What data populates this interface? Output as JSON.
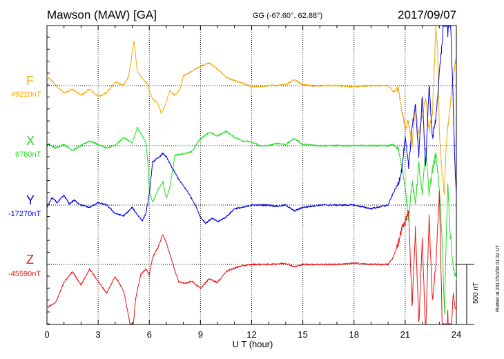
{
  "header": {
    "title": "Mawson (MAW)  [GA]",
    "coords": "GG (-67.60°,  62.88°)",
    "date": "2017/09/07"
  },
  "footer": {
    "plotted": "Plotted at 2017/10/08 01:32 UT",
    "scale_label": "500 nT"
  },
  "chart_data": {
    "type": "line",
    "title": "Mawson (MAW)  [GA]",
    "xlabel": "U T (hour)",
    "ylabel": "",
    "xlim": [
      0,
      24
    ],
    "x_ticks": [
      0,
      3,
      6,
      9,
      12,
      15,
      18,
      21,
      24
    ],
    "x_tick_labels": [
      "0",
      "3",
      "6",
      "9",
      "12",
      "15",
      "18",
      "21",
      "24"
    ],
    "scale_bar_nT": 500,
    "grid": true,
    "series": [
      {
        "name": "F",
        "baseline": "49220nT",
        "baseline_nT": 49220,
        "color": "#f5a800",
        "points": [
          [
            0,
            70
          ],
          [
            0.3,
            40
          ],
          [
            0.6,
            -10
          ],
          [
            1,
            -60
          ],
          [
            1.5,
            -30
          ],
          [
            2,
            -80
          ],
          [
            2.5,
            -30
          ],
          [
            3,
            -90
          ],
          [
            3.5,
            -60
          ],
          [
            4,
            30
          ],
          [
            4.5,
            0
          ],
          [
            4.8,
            80
          ],
          [
            5.1,
            370
          ],
          [
            5.3,
            120
          ],
          [
            5.6,
            60
          ],
          [
            5.9,
            10
          ],
          [
            6,
            -50
          ],
          [
            6.2,
            -110
          ],
          [
            6.5,
            -150
          ],
          [
            6.7,
            -230
          ],
          [
            6.9,
            -180
          ],
          [
            7.2,
            -40
          ],
          [
            7.5,
            -80
          ],
          [
            7.8,
            -30
          ],
          [
            8,
            80
          ],
          [
            8.5,
            120
          ],
          [
            9,
            160
          ],
          [
            9.5,
            190
          ],
          [
            10,
            140
          ],
          [
            10.5,
            70
          ],
          [
            11,
            40
          ],
          [
            11.5,
            20
          ],
          [
            12,
            -10
          ],
          [
            12.5,
            -10
          ],
          [
            13,
            0
          ],
          [
            13.5,
            0
          ],
          [
            14,
            10
          ],
          [
            14.5,
            50
          ],
          [
            15,
            10
          ],
          [
            15.5,
            0
          ],
          [
            16,
            0
          ],
          [
            17,
            0
          ],
          [
            18,
            -10
          ],
          [
            19,
            0
          ],
          [
            20,
            0
          ],
          [
            20.3,
            -50
          ],
          [
            20.6,
            -30
          ],
          [
            20.8,
            -200
          ],
          [
            21,
            -350
          ],
          [
            21.2,
            -300
          ],
          [
            21.4,
            -500
          ],
          [
            21.6,
            -180
          ],
          [
            21.8,
            -400
          ],
          [
            22,
            -260
          ],
          [
            22.2,
            -100
          ],
          [
            22.4,
            -380
          ],
          [
            22.6,
            -220
          ],
          [
            22.8,
            500
          ],
          [
            22.9,
            300
          ],
          [
            23,
            -350
          ],
          [
            23.1,
            -620
          ],
          [
            23.2,
            -780
          ],
          [
            23.3,
            -900
          ],
          [
            23.4,
            -500
          ],
          [
            23.6,
            -200
          ],
          [
            23.8,
            60
          ],
          [
            23.95,
            200
          ],
          [
            24,
            160
          ]
        ]
      },
      {
        "name": "X",
        "baseline": "6780nT",
        "baseline_nT": 6780,
        "color": "#22dd22",
        "points": [
          [
            0,
            20
          ],
          [
            0.5,
            -20
          ],
          [
            1,
            10
          ],
          [
            1.5,
            -40
          ],
          [
            2,
            0
          ],
          [
            2.5,
            40
          ],
          [
            3,
            10
          ],
          [
            3.5,
            -20
          ],
          [
            4,
            0
          ],
          [
            4.5,
            70
          ],
          [
            5,
            20
          ],
          [
            5.3,
            150
          ],
          [
            5.6,
            80
          ],
          [
            5.8,
            20
          ],
          [
            5.9,
            -120
          ],
          [
            6,
            -380
          ],
          [
            6.2,
            -470
          ],
          [
            6.5,
            -370
          ],
          [
            6.8,
            -300
          ],
          [
            7,
            -440
          ],
          [
            7.2,
            -350
          ],
          [
            7.5,
            -80
          ],
          [
            8,
            -70
          ],
          [
            8.5,
            -50
          ],
          [
            9,
            60
          ],
          [
            9.5,
            110
          ],
          [
            10,
            80
          ],
          [
            10.5,
            120
          ],
          [
            11,
            70
          ],
          [
            11.5,
            40
          ],
          [
            12,
            30
          ],
          [
            12.5,
            0
          ],
          [
            13,
            0
          ],
          [
            13.5,
            20
          ],
          [
            14,
            10
          ],
          [
            14.5,
            60
          ],
          [
            15,
            10
          ],
          [
            16,
            0
          ],
          [
            17,
            0
          ],
          [
            18,
            0
          ],
          [
            19,
            0
          ],
          [
            20,
            0
          ],
          [
            20.3,
            10
          ],
          [
            20.6,
            -30
          ],
          [
            20.8,
            -160
          ],
          [
            21,
            -360
          ],
          [
            21.2,
            -600
          ],
          [
            21.4,
            -300
          ],
          [
            21.6,
            -480
          ],
          [
            21.8,
            -150
          ],
          [
            22,
            -420
          ],
          [
            22.2,
            0
          ],
          [
            22.4,
            -400
          ],
          [
            22.6,
            -200
          ],
          [
            22.8,
            -70
          ],
          [
            23,
            -350
          ],
          [
            23.2,
            -900
          ],
          [
            23.3,
            -1400
          ],
          [
            23.4,
            -800
          ],
          [
            23.5,
            -300
          ],
          [
            23.6,
            -650
          ],
          [
            23.8,
            -1000
          ],
          [
            24,
            -1120
          ]
        ]
      },
      {
        "name": "Y",
        "baseline": "-17270nT",
        "baseline_nT": -17270,
        "color": "#0000e6",
        "points": [
          [
            0,
            -20
          ],
          [
            0.3,
            60
          ],
          [
            0.6,
            20
          ],
          [
            1,
            80
          ],
          [
            1.3,
            10
          ],
          [
            1.6,
            40
          ],
          [
            2,
            0
          ],
          [
            2.5,
            -20
          ],
          [
            3,
            20
          ],
          [
            3.5,
            0
          ],
          [
            4,
            -70
          ],
          [
            4.5,
            -90
          ],
          [
            5,
            -20
          ],
          [
            5.3,
            -80
          ],
          [
            5.6,
            -130
          ],
          [
            5.8,
            -70
          ],
          [
            6,
            90
          ],
          [
            6.2,
            360
          ],
          [
            6.5,
            390
          ],
          [
            6.8,
            430
          ],
          [
            7,
            400
          ],
          [
            7.3,
            320
          ],
          [
            7.7,
            220
          ],
          [
            8,
            160
          ],
          [
            8.3,
            100
          ],
          [
            8.7,
            0
          ],
          [
            9,
            -100
          ],
          [
            9.3,
            -150
          ],
          [
            9.7,
            -110
          ],
          [
            10,
            -140
          ],
          [
            10.5,
            -100
          ],
          [
            11,
            -30
          ],
          [
            11.5,
            -20
          ],
          [
            12,
            0
          ],
          [
            12.5,
            0
          ],
          [
            13,
            0
          ],
          [
            13.5,
            -10
          ],
          [
            14,
            0
          ],
          [
            14.5,
            -50
          ],
          [
            15,
            -20
          ],
          [
            16,
            0
          ],
          [
            17,
            0
          ],
          [
            18,
            0
          ],
          [
            19,
            -30
          ],
          [
            20,
            0
          ],
          [
            20.3,
            100
          ],
          [
            20.6,
            180
          ],
          [
            20.8,
            300
          ],
          [
            21,
            550
          ],
          [
            21.2,
            320
          ],
          [
            21.4,
            650
          ],
          [
            21.6,
            820
          ],
          [
            21.8,
            410
          ],
          [
            22,
            920
          ],
          [
            22.2,
            300
          ],
          [
            22.4,
            1010
          ],
          [
            22.6,
            560
          ],
          [
            22.8,
            720
          ],
          [
            23,
            1100
          ],
          [
            23.2,
            1400
          ],
          [
            23.3,
            2000
          ],
          [
            23.4,
            1800
          ],
          [
            23.5,
            1400
          ],
          [
            23.6,
            1800
          ],
          [
            23.8,
            900
          ],
          [
            23.95,
            200
          ],
          [
            24,
            100
          ]
        ]
      },
      {
        "name": "Z",
        "baseline": "-45590nT",
        "baseline_nT": -45590,
        "color": "#ee1111",
        "points": [
          [
            0,
            -360
          ],
          [
            0.5,
            -320
          ],
          [
            1,
            -150
          ],
          [
            1.5,
            -60
          ],
          [
            2,
            -170
          ],
          [
            2.5,
            -40
          ],
          [
            3,
            -140
          ],
          [
            3.5,
            -240
          ],
          [
            4,
            -100
          ],
          [
            4.5,
            -220
          ],
          [
            4.8,
            -440
          ],
          [
            5,
            -620
          ],
          [
            5.2,
            -280
          ],
          [
            5.5,
            -80
          ],
          [
            5.8,
            -40
          ],
          [
            6,
            -90
          ],
          [
            6.2,
            60
          ],
          [
            6.5,
            140
          ],
          [
            6.8,
            250
          ],
          [
            7,
            180
          ],
          [
            7.3,
            40
          ],
          [
            7.7,
            -140
          ],
          [
            8,
            -160
          ],
          [
            8.5,
            -140
          ],
          [
            9,
            -200
          ],
          [
            9.5,
            -120
          ],
          [
            10,
            -150
          ],
          [
            10.5,
            -60
          ],
          [
            11,
            -30
          ],
          [
            11.5,
            -10
          ],
          [
            12,
            0
          ],
          [
            13,
            0
          ],
          [
            14,
            10
          ],
          [
            14.5,
            -20
          ],
          [
            15,
            0
          ],
          [
            16,
            0
          ],
          [
            17,
            0
          ],
          [
            18,
            10
          ],
          [
            19,
            0
          ],
          [
            20,
            0
          ],
          [
            20.3,
            60
          ],
          [
            20.6,
            180
          ],
          [
            20.8,
            300
          ],
          [
            21,
            350
          ],
          [
            21.2,
            450
          ],
          [
            21.4,
            -360
          ],
          [
            21.6,
            300
          ],
          [
            21.8,
            -500
          ],
          [
            22,
            200
          ],
          [
            22.2,
            -600
          ],
          [
            22.4,
            400
          ],
          [
            22.6,
            -300
          ],
          [
            22.8,
            0
          ],
          [
            23,
            600
          ],
          [
            23.2,
            -700
          ],
          [
            23.3,
            -1000
          ],
          [
            23.5,
            -400
          ],
          [
            23.6,
            -900
          ],
          [
            23.8,
            -250
          ],
          [
            24,
            -400
          ]
        ]
      }
    ]
  }
}
